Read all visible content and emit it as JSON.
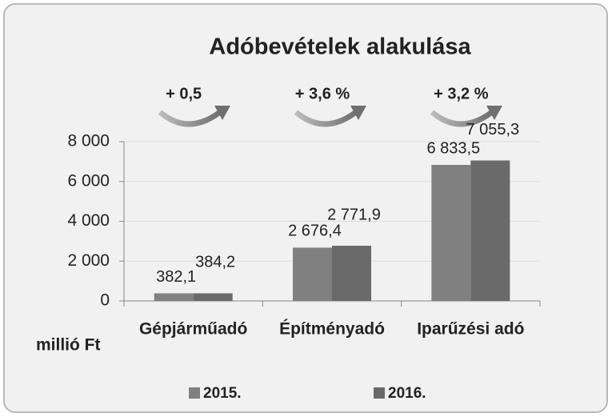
{
  "chart_data": {
    "type": "bar",
    "title": "Adóbevételek alakulása",
    "y_axis_label": "millió Ft",
    "annotations": [
      "+ 0,5",
      "+ 3,6 %",
      "+ 3,2 %"
    ],
    "categories": [
      "Gépjárműadó",
      "Építményadó",
      "Iparűzési adó"
    ],
    "series": [
      {
        "name": "2015.",
        "color": "#808080",
        "values": [
          382.1,
          2676.4,
          6833.5
        ],
        "value_labels": [
          "382,1",
          "2 676,4",
          "6 833,5"
        ]
      },
      {
        "name": "2016.",
        "color": "#6a6a6a",
        "values": [
          384.2,
          2771.9,
          7055.3
        ],
        "value_labels": [
          "384,2",
          "2 771,9",
          "7 055,3"
        ]
      }
    ],
    "ylim": [
      0,
      8000
    ],
    "yticks": [
      0,
      {
        "value": 2000,
        "label": "2 000"
      },
      {
        "value": 4000,
        "label": "4 000"
      },
      {
        "value": 6000,
        "label": "6 000"
      },
      {
        "value": 8000,
        "label": "8 000"
      }
    ],
    "grid": true
  }
}
